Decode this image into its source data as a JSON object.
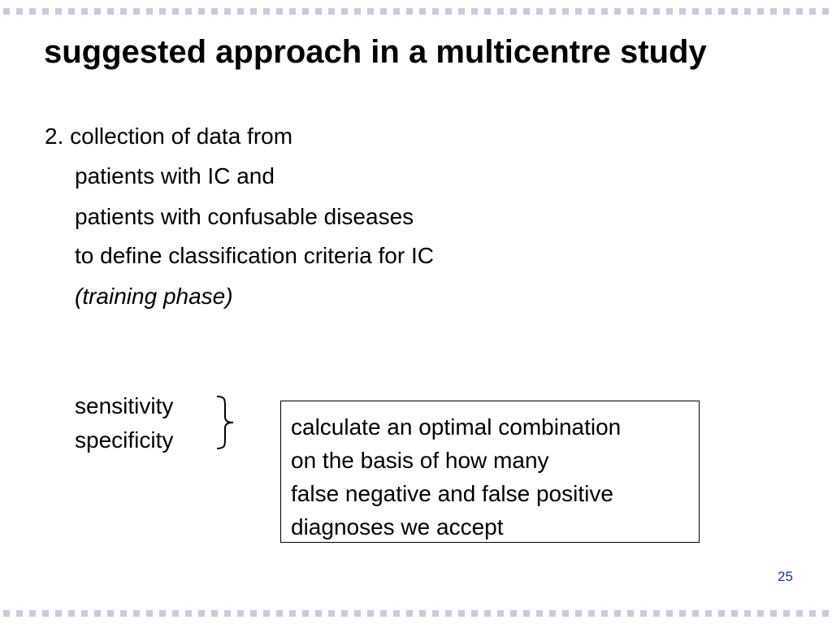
{
  "slide": {
    "title": "suggested approach in a multicentre study",
    "body_lines": [
      "2. collection of data from",
      "patients with IC and",
      "patients with confusable diseases",
      "to define classification criteria for IC",
      "(training phase)"
    ],
    "metrics": [
      "sensitivity",
      "specificity"
    ],
    "callout_lines": [
      "calculate an optimal combination",
      "on the basis of how many",
      "false negative and false positive",
      "diagnoses we accept"
    ],
    "page_number": "25",
    "colors": {
      "border_dots": "#c5cbe0",
      "page_number": "#1a2fb0"
    }
  }
}
